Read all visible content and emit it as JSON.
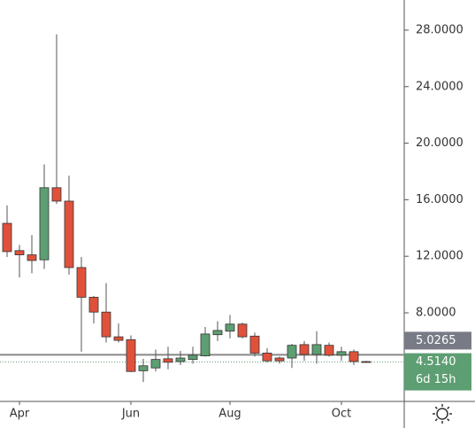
{
  "chart_data": {
    "type": "candlestick",
    "categories": [
      null,
      "Apr",
      null,
      null,
      null,
      null,
      null,
      null,
      null,
      null,
      "Jun",
      null,
      null,
      null,
      null,
      null,
      null,
      null,
      "Aug",
      null,
      null,
      null,
      null,
      null,
      null,
      null,
      null,
      "Oct",
      null,
      null
    ],
    "open": [
      14.33,
      12.4,
      12.1,
      11.75,
      16.85,
      15.9,
      11.2,
      9.1,
      8.05,
      6.3,
      6.1,
      3.9,
      4.1,
      4.75,
      4.55,
      4.7,
      4.95,
      6.45,
      6.7,
      7.2,
      6.35,
      5.15,
      4.8,
      4.8,
      5.75,
      5.05,
      5.7,
      5.0,
      5.25,
      4.55
    ],
    "high": [
      15.6,
      12.8,
      13.5,
      18.5,
      27.7,
      17.7,
      11.95,
      9.2,
      10.1,
      7.25,
      6.4,
      4.75,
      5.4,
      5.6,
      5.3,
      5.6,
      7.0,
      7.4,
      7.85,
      7.3,
      6.6,
      5.5,
      4.9,
      5.8,
      6.0,
      6.7,
      5.9,
      5.6,
      5.4,
      4.6
    ],
    "low": [
      11.95,
      10.5,
      10.8,
      11.1,
      15.7,
      10.7,
      5.25,
      7.25,
      5.9,
      5.9,
      3.8,
      3.1,
      3.85,
      4.0,
      4.3,
      4.4,
      4.9,
      6.0,
      6.2,
      6.2,
      4.9,
      4.5,
      4.4,
      4.1,
      4.6,
      4.4,
      4.9,
      4.6,
      4.3,
      4.5
    ],
    "close": [
      12.33,
      12.1,
      11.7,
      16.85,
      15.9,
      11.2,
      9.1,
      8.05,
      6.3,
      6.05,
      3.85,
      4.25,
      4.7,
      4.5,
      4.8,
      5.0,
      6.5,
      6.75,
      7.2,
      6.3,
      5.15,
      4.6,
      4.6,
      5.7,
      5.05,
      5.75,
      5.0,
      5.25,
      4.55,
      4.514
    ],
    "up_color": "#5d9e72",
    "down_color": "#e0513c",
    "ylim": [
      1.73,
      30.13
    ],
    "yticks": [
      {
        "value": 8,
        "label": "8.0000"
      },
      {
        "value": 12,
        "label": "12.0000"
      },
      {
        "value": 16,
        "label": "16.0000"
      },
      {
        "value": 20,
        "label": "20.0000"
      },
      {
        "value": 24,
        "label": "24.0000"
      },
      {
        "value": 28,
        "label": "28.0000"
      }
    ],
    "price_line": 5.0265,
    "last_price": {
      "value": 4.514,
      "label": "4.5140"
    },
    "countdown": "6d 15h"
  }
}
